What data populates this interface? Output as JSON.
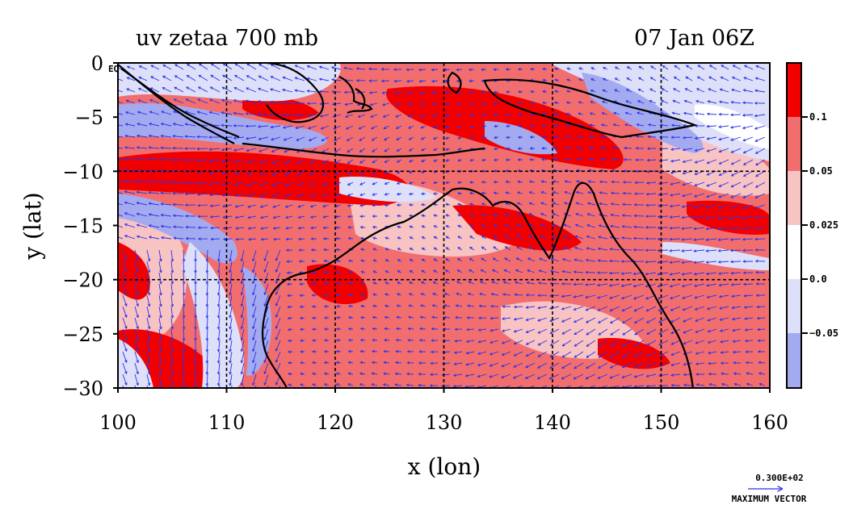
{
  "title_left": "uv zetaa 700 mb",
  "title_right": "07 Jan 06Z",
  "x_label": "x (lon)",
  "y_label": "y (lat)",
  "x_ticks": [
    "100",
    "110",
    "120",
    "130",
    "140",
    "150",
    "160"
  ],
  "y_ticks": [
    "0",
    "−5",
    "−10",
    "−15",
    "−20",
    "−25",
    "−30"
  ],
  "corner_label": "EQ",
  "colorbar": {
    "labels": [
      "0.1",
      "0.05",
      "0.025",
      "0.0",
      "−0.05"
    ],
    "colors": [
      "#f20000",
      "#f26e6e",
      "#f8c3c3",
      "#ffffff",
      "#dde0f8",
      "#a4aaf0"
    ]
  },
  "vector_key": {
    "value": "0.300E+02",
    "caption": "MAXIMUM VECTOR",
    "color": "#2a32e6"
  },
  "map": {
    "lon_range": [
      100,
      160
    ],
    "lat_range": [
      -30,
      0
    ],
    "grid_lons": [
      110,
      120,
      130,
      140,
      150
    ],
    "grid_lats": [
      -10,
      -20
    ],
    "vector_color": "#2a32e6",
    "coast_color": "#000000"
  }
}
